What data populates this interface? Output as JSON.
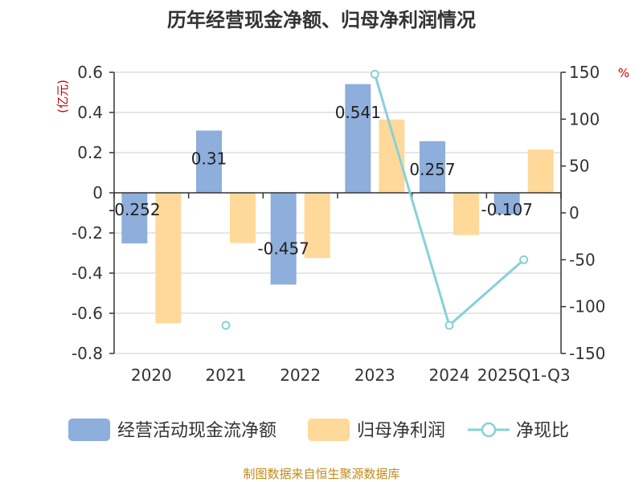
{
  "chart_data": {
    "type": "bar",
    "title": "历年经营现金净额、归母净利润情况",
    "categories": [
      "2020",
      "2021",
      "2022",
      "2023",
      "2024",
      "2025Q1-Q3"
    ],
    "series": [
      {
        "name": "经营活动现金流净额",
        "type": "bar",
        "axis": "left",
        "color": "#8eaedb",
        "values": [
          -0.252,
          0.31,
          -0.457,
          0.541,
          0.257,
          -0.107
        ],
        "labels": [
          "-0.252",
          "0.31",
          "-0.457",
          "0.541",
          "0.257",
          "-0.107"
        ]
      },
      {
        "name": "归母净利润",
        "type": "bar",
        "axis": "left",
        "color": "#ffd99a",
        "values": [
          -0.65,
          -0.25,
          -0.325,
          0.365,
          -0.21,
          0.215
        ]
      },
      {
        "name": "净现比",
        "type": "line",
        "axis": "right",
        "color": "#86d1d9",
        "values": [
          null,
          -120,
          null,
          148,
          -120,
          -50
        ]
      }
    ],
    "y_left": {
      "unit": "(亿元)",
      "min": -0.8,
      "max": 0.6,
      "ticks": [
        0.6,
        0.4,
        0.2,
        0,
        -0.2,
        -0.4,
        -0.6,
        -0.8
      ],
      "tick_labels": [
        "0.6",
        "0.4",
        "0.2",
        "0",
        "-0.2",
        "-0.4",
        "-0.6",
        "-0.8"
      ]
    },
    "y_right": {
      "unit": "%",
      "min": -150,
      "max": 150,
      "ticks": [
        150,
        100,
        50,
        0,
        -50,
        -100,
        -150
      ],
      "tick_labels": [
        "150",
        "100",
        "50",
        "0",
        "-50",
        "-100",
        "-150"
      ]
    },
    "grid": true,
    "legend_position": "bottom"
  },
  "source": "制图数据来自恒生聚源数据库"
}
